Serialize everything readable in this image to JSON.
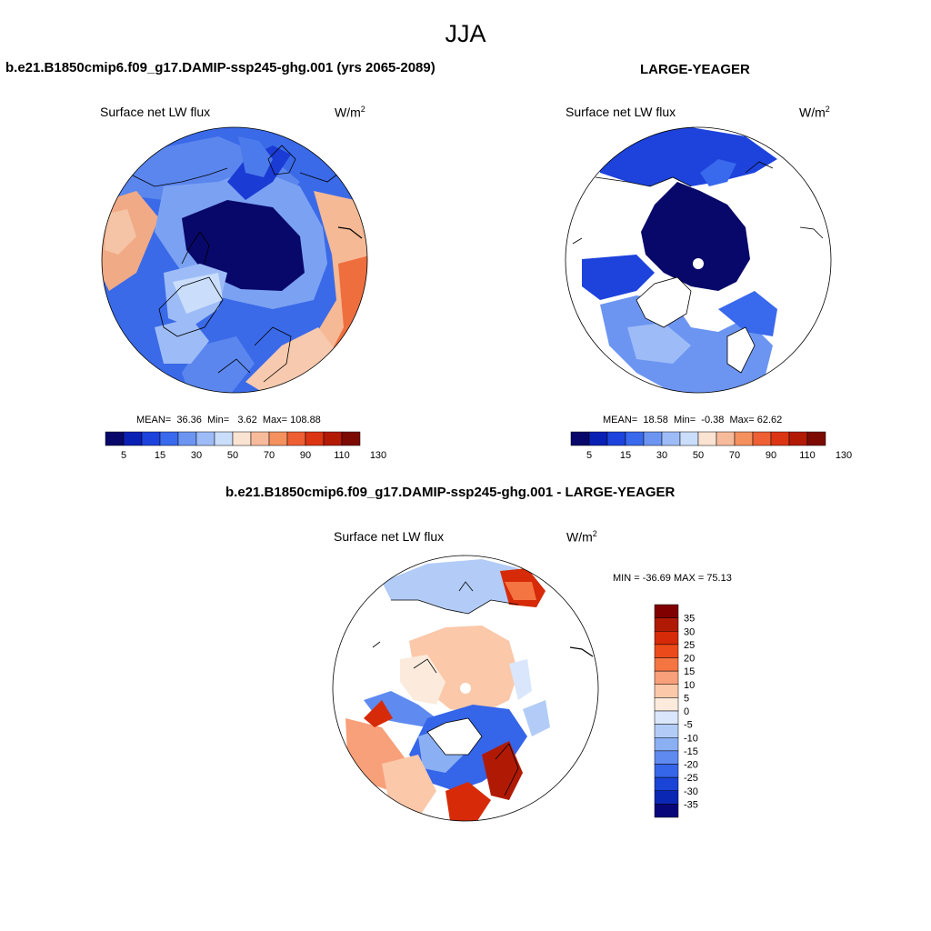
{
  "figure": {
    "season": "JJA",
    "panel_left_title": "b.e21.B1850cmip6.f09_g17.DAMIP-ssp245-ghg.001 (yrs 2065-2089)",
    "panel_right_title": "LARGE-YEAGER",
    "panel_diff_title": "b.e21.B1850cmip6.f09_g17.DAMIP-ssp245-ghg.001 - LARGE-YEAGER"
  },
  "chart_data": [
    {
      "type": "heatmap",
      "projection": "north polar stereographic",
      "title": "b.e21.B1850cmip6.f09_g17.DAMIP-ssp245-ghg.001 (yrs 2065-2089)",
      "variable": "Surface net LW flux",
      "units": "W/m",
      "units_exp": "2",
      "stats": {
        "mean_label": "MEAN=",
        "mean": "36.36",
        "min_label": "Min=",
        "min": "3.62",
        "max_label": "Max=",
        "max": "108.88"
      },
      "colorbar_ticks": [
        "5",
        "15",
        "30",
        "50",
        "70",
        "90",
        "110",
        "130"
      ],
      "colorbar_colors": [
        "#08086a",
        "#0a1fb4",
        "#1d43dc",
        "#3969ec",
        "#6c95f2",
        "#9dbcf7",
        "#cadefb",
        "#fbe3d2",
        "#f7bb9c",
        "#f4915f",
        "#ee5f34",
        "#dc3513",
        "#b21a06",
        "#7c0a02"
      ]
    },
    {
      "type": "heatmap",
      "projection": "north polar stereographic",
      "title": "LARGE-YEAGER",
      "variable": "Surface net LW flux",
      "units": "W/m",
      "units_exp": "2",
      "stats": {
        "mean_label": "MEAN=",
        "mean": "18.58",
        "min_label": "Min=",
        "min": "-0.38",
        "max_label": "Max=",
        "max": "62.62"
      },
      "colorbar_ticks": [
        "5",
        "15",
        "30",
        "50",
        "70",
        "90",
        "110",
        "130"
      ],
      "colorbar_colors": [
        "#08086a",
        "#0a1fb4",
        "#1d43dc",
        "#3969ec",
        "#6c95f2",
        "#9dbcf7",
        "#cadefb",
        "#fbe3d2",
        "#f7bb9c",
        "#f4915f",
        "#ee5f34",
        "#dc3513",
        "#b21a06",
        "#7c0a02"
      ]
    },
    {
      "type": "heatmap",
      "projection": "north polar stereographic",
      "title": "b.e21.B1850cmip6.f09_g17.DAMIP-ssp245-ghg.001 - LARGE-YEAGER",
      "variable": "Surface net LW flux",
      "units": "W/m",
      "units_exp": "2",
      "minmax_text": "MIN = -36.69 MAX =  75.13",
      "min": -36.69,
      "max": 75.13,
      "colorbar_ticks": [
        "35",
        "30",
        "25",
        "20",
        "15",
        "10",
        "5",
        "0",
        "-5",
        "-10",
        "-15",
        "-20",
        "-25",
        "-30",
        "-35"
      ],
      "colorbar_colors": [
        "#800000",
        "#b01a05",
        "#d62a08",
        "#ec4a1a",
        "#f57542",
        "#f8a07a",
        "#fbc8a9",
        "#fcebdc",
        "#d9e6fb",
        "#b2ccf7",
        "#8aaff3",
        "#5f8af0",
        "#3565e8",
        "#1a44d6",
        "#0a27b4",
        "#07077a"
      ]
    }
  ]
}
